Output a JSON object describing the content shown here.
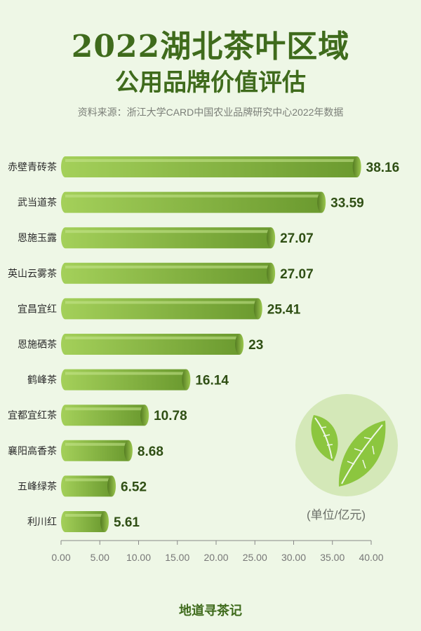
{
  "header": {
    "title_line1": "2022湖北茶叶区域",
    "title_line2": "公用品牌价值评估",
    "source": "资料来源：浙江大学CARD中国农业品牌研究中心2022年数据"
  },
  "unit_label": "(单位/亿元)",
  "footer": "地道寻茶记",
  "colors": {
    "bar_light": "#a4d05a",
    "bar_dark": "#6b9a2f",
    "text_dark": "#2f4f14",
    "axis": "#888888",
    "leaf_bg": "#d4e8b8",
    "leaf": "#8cc63f"
  },
  "icons": {
    "badge": "tea-leaf-icon"
  },
  "chart_data": {
    "type": "bar",
    "orientation": "horizontal",
    "categories": [
      "赤壁青砖茶",
      "武当道茶",
      "恩施玉露",
      "英山云雾茶",
      "宜昌宜红",
      "恩施硒茶",
      "鹤峰茶",
      "宜都宜红茶",
      "襄阳高香茶",
      "五峰绿茶",
      "利川红"
    ],
    "values": [
      38.16,
      33.59,
      27.07,
      27.07,
      25.41,
      23,
      16.14,
      10.78,
      8.68,
      6.52,
      5.61
    ],
    "value_labels": [
      "38.16",
      "33.59",
      "27.07",
      "27.07",
      "25.41",
      "23",
      "16.14",
      "10.78",
      "8.68",
      "6.52",
      "5.61"
    ],
    "xlim": [
      0,
      40
    ],
    "xticks": [
      "0.00",
      "5.00",
      "10.00",
      "15.00",
      "20.00",
      "25.00",
      "30.00",
      "35.00",
      "40.00"
    ],
    "grid": false
  }
}
